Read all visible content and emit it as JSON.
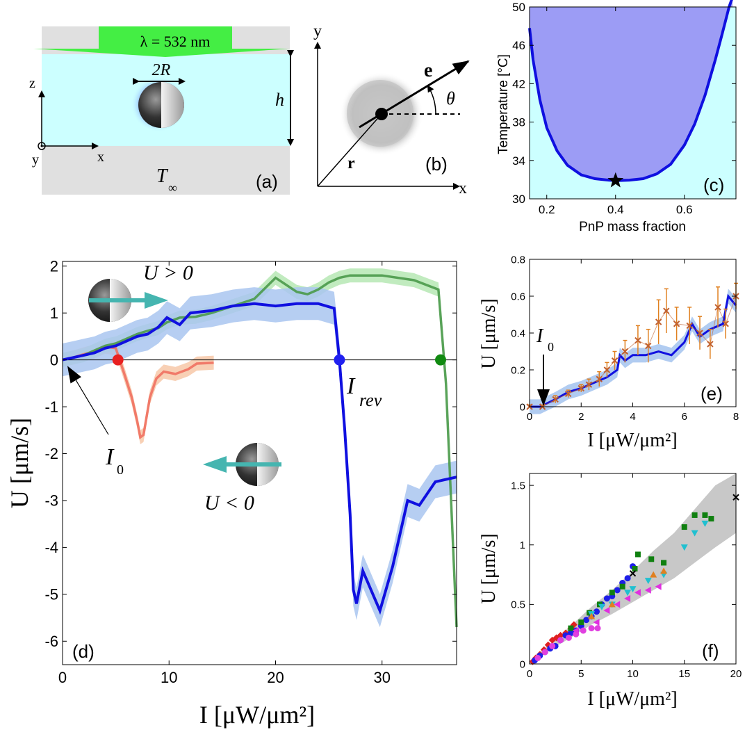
{
  "colors": {
    "blue": "#1010e0",
    "blue_band": "#a9c6f0",
    "green": "#4a9a4a",
    "green_band": "#b6e7b4",
    "red": "#f07060",
    "red_band": "#f7c8a8",
    "cyan_fluid": "#ccffff",
    "lavender": "#9c9cf5",
    "gray_wall": "#e0e0e0",
    "laser_green": "#44ee44",
    "teal_arrow": "#45b5b0",
    "error_orange": "#e08020",
    "marker_brown": "#c06030",
    "gray_band": "#c8c8c8"
  },
  "panel_a": {
    "label": "(a)",
    "laser_label": "λ = 532 nm",
    "diameter_label": "2R",
    "height_label": "h",
    "z_label": "z",
    "x_label": "x",
    "y_label": "y",
    "temp_label": "T",
    "temp_sub": "∞"
  },
  "panel_b": {
    "label": "(b)",
    "y_label": "y",
    "x_label": "x",
    "e_label": "e",
    "r_label": "r",
    "theta_label": "θ"
  },
  "panel_c": {
    "label": "(c)",
    "ylabel": "Temperature [°C]",
    "xlabel": "PnP mass fraction",
    "yticks": [
      "50",
      "46",
      "42",
      "38",
      "34",
      "30"
    ],
    "xticks": [
      "0.2",
      "0.4",
      "0.6"
    ]
  },
  "panel_d": {
    "label": "(d)",
    "ylabel": "U [μm/s]",
    "xlabel": "I [μW/μm²]",
    "yticks": [
      "2",
      "1",
      "0",
      "-1",
      "-2",
      "-3",
      "-4",
      "-5",
      "-6"
    ],
    "xticks": [
      "0",
      "10",
      "20",
      "30"
    ],
    "u_pos": "U > 0",
    "u_neg": "U < 0",
    "i0": "I",
    "i0_sub": "0",
    "irev": "I",
    "irev_sub": "rev"
  },
  "panel_e": {
    "label": "(e)",
    "ylabel": "U [μm/s]",
    "xlabel": "I [μW/μm²]",
    "yticks": [
      "0.8",
      "0.6",
      "0.4",
      "0.2",
      "0"
    ],
    "xticks": [
      "0",
      "2",
      "4",
      "6",
      "8"
    ],
    "i0": "I",
    "i0_sub": "0"
  },
  "panel_f": {
    "label": "(f)",
    "ylabel": "U [μm/s]",
    "xlabel": "I [μW/μm²]",
    "yticks": [
      "1.5",
      "1",
      "0.5",
      "0"
    ],
    "xticks": [
      "0",
      "5",
      "10",
      "15",
      "20"
    ]
  },
  "chart_data": [
    {
      "panel": "c",
      "type": "area",
      "xlabel": "PnP mass fraction",
      "ylabel": "Temperature [°C]",
      "xlim": [
        0.15,
        0.75
      ],
      "ylim": [
        30,
        50
      ],
      "series": [
        {
          "x": [
            0.15,
            0.16,
            0.18,
            0.2,
            0.23,
            0.26,
            0.3,
            0.34,
            0.38,
            0.4,
            0.44,
            0.48,
            0.52,
            0.56,
            0.6,
            0.63,
            0.66,
            0.69,
            0.71,
            0.73,
            0.74
          ],
          "values": [
            47.8,
            44.5,
            40.3,
            37.4,
            35.0,
            33.5,
            32.5,
            32.1,
            31.95,
            31.9,
            31.95,
            32.1,
            32.6,
            33.6,
            35.6,
            37.8,
            40.8,
            44.5,
            47.2,
            50.0,
            51.0
          ]
        }
      ],
      "star": {
        "x": 0.4,
        "y": 31.9
      }
    },
    {
      "panel": "d",
      "type": "line",
      "xlabel": "I [μW/μm²]",
      "ylabel": "U [μm/s]",
      "xlim": [
        0,
        37
      ],
      "ylim": [
        -6.5,
        2.1
      ],
      "series": [
        {
          "x": [
            0,
            1,
            2,
            3,
            4,
            5,
            5.8,
            6.5,
            7,
            7.3,
            7.6,
            8.2,
            8.8,
            9.5,
            10.6,
            11.8,
            12.6,
            14.2
          ],
          "values": [
            0,
            0.05,
            0.12,
            0.18,
            0.28,
            0.25,
            -0.3,
            -0.8,
            -1.3,
            -1.65,
            -1.6,
            -0.8,
            -0.4,
            -0.25,
            -0.3,
            -0.2,
            -0.08,
            -0.06
          ],
          "band": 0.15
        },
        {
          "x": [
            0,
            1,
            2,
            3,
            4,
            5,
            6,
            7,
            8,
            9,
            9.8,
            11,
            12.5,
            14,
            16,
            18,
            20,
            22,
            23,
            24,
            25,
            26,
            27,
            30,
            33,
            35.3,
            36,
            37
          ],
          "values": [
            0,
            0.05,
            0.1,
            0.2,
            0.3,
            0.35,
            0.45,
            0.55,
            0.62,
            0.68,
            0.8,
            0.9,
            0.92,
            1.0,
            1.15,
            1.3,
            1.75,
            1.45,
            1.4,
            1.5,
            1.65,
            1.75,
            1.8,
            1.8,
            1.7,
            1.5,
            -0.5,
            -5.7
          ],
          "band": 0.15
        },
        {
          "x": [
            0,
            1,
            2,
            3,
            4,
            5,
            6,
            7,
            8,
            9,
            9.8,
            11,
            12,
            14,
            16,
            18,
            20,
            22,
            24,
            25.5,
            26,
            26.5,
            27,
            27.3,
            27.6,
            28.2,
            29.8,
            31,
            32.4,
            33.5,
            35,
            37
          ],
          "values": [
            0,
            0.05,
            0.1,
            0.15,
            0.25,
            0.3,
            0.4,
            0.5,
            0.55,
            0.7,
            0.9,
            0.75,
            1.0,
            1.05,
            1.15,
            1.2,
            1.15,
            1.2,
            1.2,
            1.1,
            0,
            -1.5,
            -3.3,
            -4.9,
            -5.2,
            -4.5,
            -5.35,
            -4.4,
            -3.0,
            -3.1,
            -2.6,
            -2.5
          ],
          "band": 0.35
        }
      ],
      "zero_crossings": [
        5.2,
        26.0,
        35.5
      ]
    },
    {
      "panel": "e",
      "type": "line",
      "xlabel": "I [μW/μm²]",
      "ylabel": "U [μm/s]",
      "xlim": [
        0,
        8
      ],
      "ylim": [
        0,
        0.8
      ],
      "series": [
        {
          "x": [
            0,
            0.4,
            0.7,
            1.0,
            1.5,
            2.0,
            2.5,
            3.0,
            3.4,
            3.5,
            3.7,
            4.0,
            4.5,
            5.0,
            5.5,
            6.0,
            6.3,
            6.6,
            7.0,
            7.5,
            7.7,
            8.0
          ],
          "values": [
            0,
            0,
            0.02,
            0.04,
            0.08,
            0.1,
            0.13,
            0.16,
            0.2,
            0.28,
            0.25,
            0.28,
            0.28,
            0.3,
            0.28,
            0.35,
            0.45,
            0.38,
            0.42,
            0.45,
            0.6,
            0.55
          ]
        },
        {
          "type": "errorbar",
          "x": [
            0,
            0.5,
            1.0,
            1.5,
            2.0,
            2.3,
            2.7,
            3.0,
            3.3,
            3.7,
            4.2,
            4.6,
            5.0,
            5.3,
            5.7,
            6.2,
            6.6,
            7.0,
            7.3,
            7.6,
            8.0
          ],
          "values": [
            0,
            0,
            0.04,
            0.07,
            0.1,
            0.12,
            0.15,
            0.2,
            0.25,
            0.3,
            0.36,
            0.33,
            0.46,
            0.52,
            0.45,
            0.44,
            0.4,
            0.34,
            0.54,
            0.45,
            0.6
          ],
          "errors": [
            0.01,
            0.01,
            0.02,
            0.02,
            0.02,
            0.03,
            0.04,
            0.04,
            0.05,
            0.06,
            0.08,
            0.09,
            0.12,
            0.12,
            0.09,
            0.1,
            0.09,
            0.08,
            0.11,
            0.08,
            0.07
          ]
        }
      ],
      "i0": 0.55
    },
    {
      "panel": "f",
      "type": "scatter",
      "xlabel": "I [μW/μm²]",
      "ylabel": "U [μm/s]",
      "xlim": [
        0,
        20
      ],
      "ylim": [
        0,
        1.6
      ],
      "series": [
        {
          "marker": "diamond",
          "color": "#e02020",
          "x": [
            0.3,
            0.6,
            1.0,
            1.4,
            1.8,
            2.2,
            2.6,
            3.0,
            3.5,
            4.0,
            4.3
          ],
          "values": [
            0.02,
            0.05,
            0.08,
            0.12,
            0.16,
            0.2,
            0.22,
            0.24,
            0.26,
            0.3,
            0.33
          ]
        },
        {
          "marker": "circle",
          "color": "#1e1ee8",
          "x": [
            0.5,
            1.0,
            1.5,
            2.0,
            2.5,
            3.0,
            3.5,
            4.0,
            4.5,
            5.0,
            5.5,
            6.0,
            6.5,
            7.0,
            7.5,
            8.0,
            8.5,
            9.0,
            9.5,
            10.0
          ],
          "values": [
            0.03,
            0.07,
            0.1,
            0.13,
            0.15,
            0.2,
            0.24,
            0.26,
            0.28,
            0.32,
            0.37,
            0.4,
            0.44,
            0.5,
            0.55,
            0.57,
            0.62,
            0.68,
            0.72,
            0.82
          ]
        },
        {
          "marker": "circle",
          "color": "#e040e0",
          "x": [
            0.8,
            1.5,
            2.2,
            3.0,
            3.8,
            4.5,
            5.2,
            6.0,
            6.6
          ],
          "values": [
            0.05,
            0.1,
            0.15,
            0.2,
            0.22,
            0.25,
            0.28,
            0.3,
            0.3
          ]
        },
        {
          "marker": "square",
          "color": "#108010",
          "x": [
            4.0,
            5.0,
            5.8,
            6.8,
            8.0,
            9.0,
            10.2,
            10.5,
            11.8,
            13.0,
            15.0,
            16.0,
            17.0,
            17.6
          ],
          "values": [
            0.3,
            0.35,
            0.43,
            0.5,
            0.6,
            0.65,
            0.8,
            0.92,
            0.88,
            0.85,
            1.15,
            1.25,
            1.25,
            1.22
          ]
        },
        {
          "marker": "triangle-down",
          "color": "#20c0d0",
          "x": [
            6.0,
            7.0,
            8.0,
            9.5,
            10.0,
            11.5,
            13.0,
            15.0,
            16.0,
            17.0
          ],
          "values": [
            0.42,
            0.48,
            0.5,
            0.6,
            0.63,
            0.7,
            0.75,
            0.98,
            1.1,
            1.18
          ]
        },
        {
          "marker": "triangle-left",
          "color": "#e030e0",
          "x": [
            4.5,
            6.5,
            7.5,
            8.5,
            9.5,
            10.5,
            11.5,
            12.5
          ],
          "values": [
            0.28,
            0.35,
            0.45,
            0.5,
            0.55,
            0.6,
            0.62,
            0.65
          ]
        },
        {
          "marker": "triangle-up",
          "color": "#e08020",
          "x": [
            6.0,
            8.0,
            12.0,
            13.0
          ],
          "values": [
            0.4,
            0.5,
            0.75,
            0.78
          ]
        },
        {
          "marker": "x",
          "color": "#000000",
          "x": [
            10.0,
            20.0
          ],
          "values": [
            0.76,
            1.4
          ]
        }
      ]
    }
  ]
}
